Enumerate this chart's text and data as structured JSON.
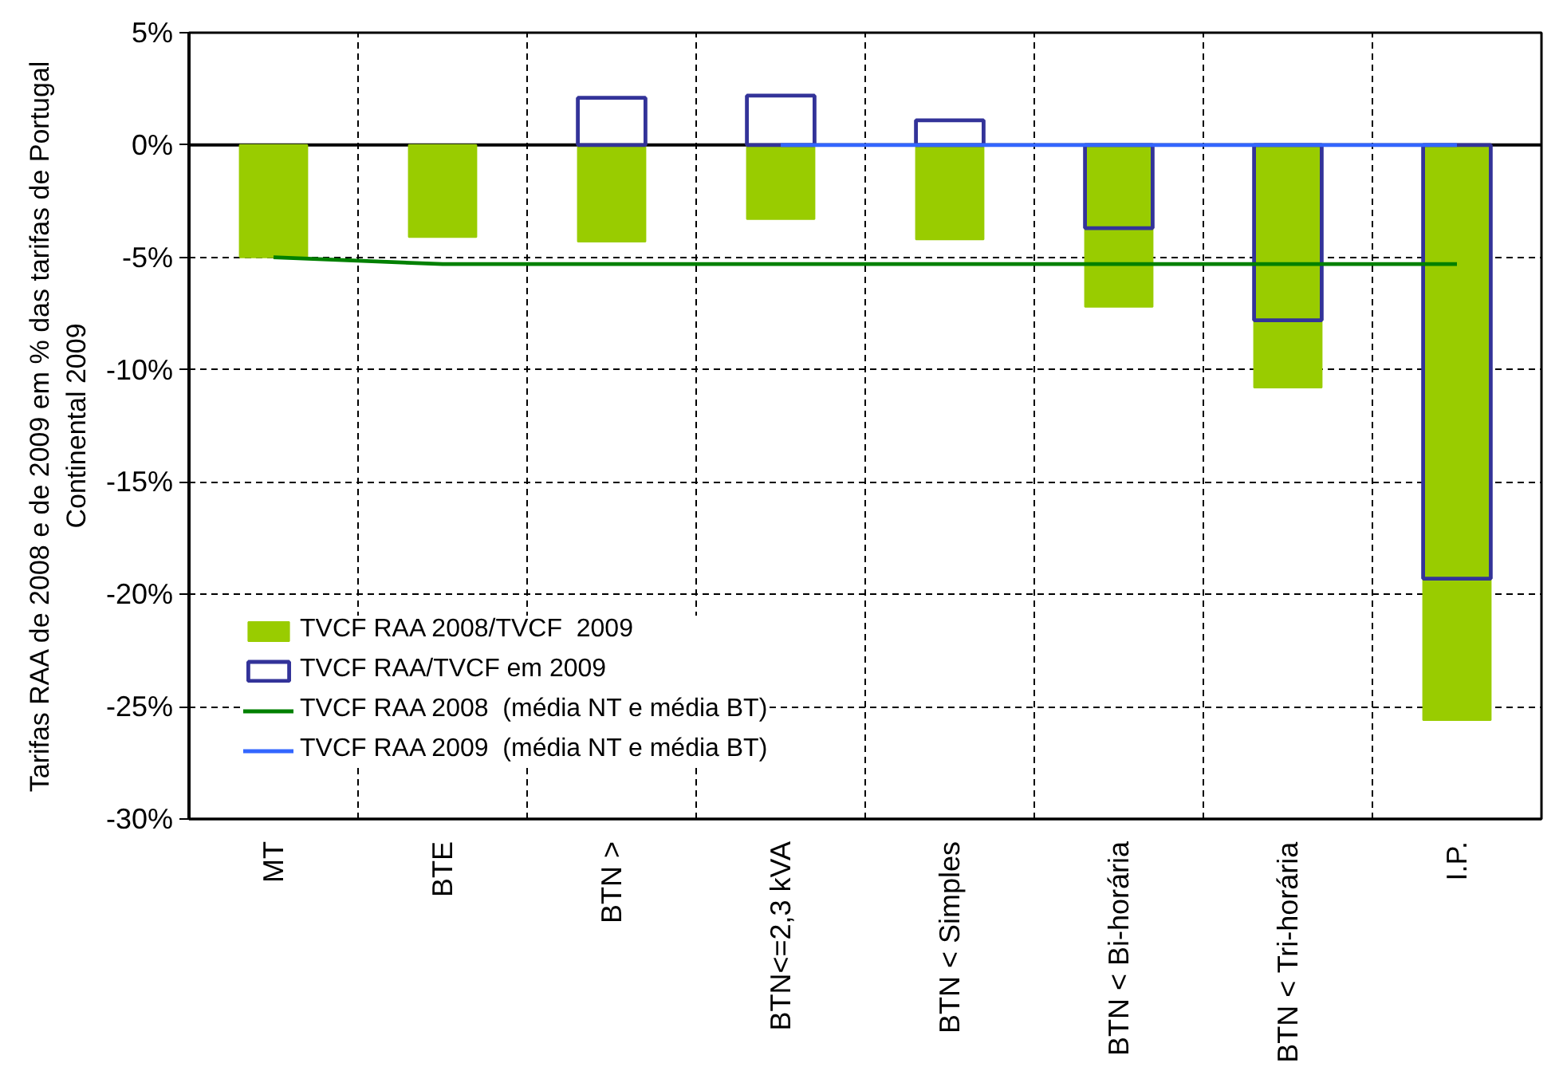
{
  "chart_data": {
    "type": "bar",
    "categories": [
      "MT",
      "BTE",
      "BTN >",
      "BTN<=2,3 kVA",
      "BTN < Simples",
      "BTN < Bi-horária",
      "BTN < Tri-horária",
      "I.P."
    ],
    "ylabel": "Tarifas RAA de 2008 e de 2009 em % das tarifas de Portugal Continental 2009",
    "series": [
      {
        "name": "TVCF RAA 2008/TVCF  2009",
        "color": "#99cc00",
        "values": [
          -5.0,
          -4.1,
          -4.3,
          -3.3,
          -4.2,
          -7.2,
          -10.8,
          -25.6
        ]
      },
      {
        "name": "TVCF RAA/TVCF em 2009",
        "line_style": "solid",
        "color": "#333399",
        "values": [
          null,
          null,
          2.1,
          2.2,
          1.1,
          -3.7,
          -7.8,
          -19.3
        ]
      },
      {
        "name": "TVCF RAA 2008  (média NT e média BT)",
        "type": "line",
        "color": "#008000",
        "values": [
          -5.0,
          -5.3,
          -5.3,
          -5.3,
          -5.3,
          -5.3,
          -5.3,
          -5.3
        ]
      },
      {
        "name": "TVCF RAA 2009  (média NT e média BT)",
        "type": "line",
        "color": "#3366ff",
        "values": [
          null,
          null,
          null,
          0,
          0,
          0,
          0,
          0
        ]
      }
    ],
    "ylim": [
      -30,
      5
    ],
    "yticks": [
      {
        "value": 5,
        "label": "5%"
      },
      {
        "value": 0,
        "label": "0%"
      },
      {
        "value": -5,
        "label": "-5%"
      },
      {
        "value": -10,
        "label": "-10%"
      },
      {
        "value": -15,
        "label": "-15%"
      },
      {
        "value": -20,
        "label": "-20%"
      },
      {
        "value": -25,
        "label": "-25%"
      },
      {
        "value": -30,
        "label": "-30%"
      }
    ],
    "grid": true,
    "legend": "bottom left",
    "ref_lines": [
      {
        "axis": "y",
        "value": 0,
        "color": "#000000"
      }
    ]
  }
}
